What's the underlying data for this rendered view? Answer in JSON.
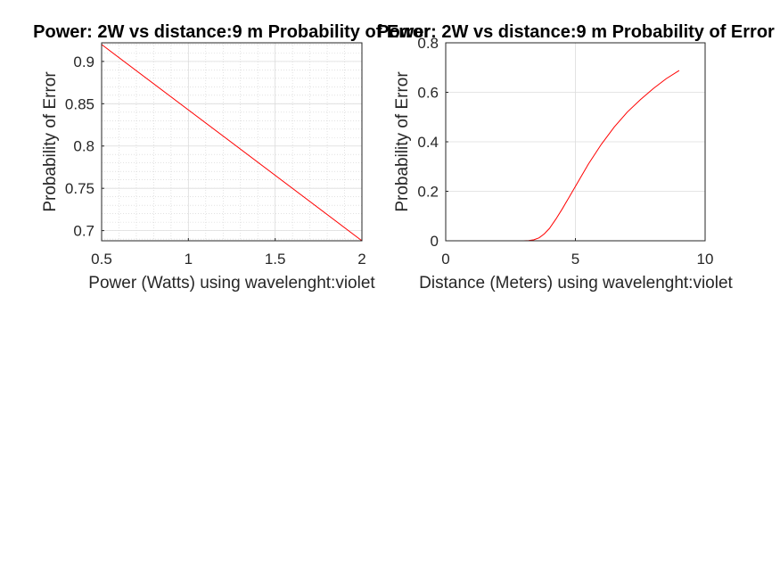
{
  "chart_data": [
    {
      "type": "line",
      "title": "Power: 2W   vs distance:9 m Probability of Error",
      "xlabel": "Power (Watts) using wavelenght:violet",
      "ylabel": "Probability of Error",
      "xlim": [
        0.5,
        2
      ],
      "ylim": [
        0.688,
        0.922
      ],
      "xticks": [
        0.5,
        1,
        1.5,
        2
      ],
      "yticks": [
        0.7,
        0.75,
        0.8,
        0.85,
        0.9
      ],
      "xtick_labels": [
        "0.5",
        "1",
        "1.5",
        "2"
      ],
      "ytick_labels": [
        "0.7",
        "0.75",
        "0.8",
        "0.85",
        "0.9"
      ],
      "grid": "major and minor",
      "line_color": "#ff0000",
      "series": [
        {
          "x": [
            0.5,
            2
          ],
          "y": [
            0.92,
            0.688
          ]
        }
      ]
    },
    {
      "type": "line",
      "title": "Power: 2W   vs distance:9 m Probability of Error",
      "xlabel": "Distance (Meters) using wavelenght:violet",
      "ylabel": "Probability of Error",
      "xlim": [
        0,
        10
      ],
      "ylim": [
        0,
        0.8
      ],
      "xticks": [
        0,
        5,
        10
      ],
      "yticks": [
        0,
        0.2,
        0.4,
        0.6,
        0.8
      ],
      "xtick_labels": [
        "0",
        "5",
        "10"
      ],
      "ytick_labels": [
        "0",
        "0.2",
        "0.4",
        "0.6",
        "0.8"
      ],
      "grid": "major",
      "line_color": "#ff0000",
      "series": [
        {
          "x": [
            0.5,
            1,
            2,
            3,
            3.2,
            3.4,
            3.6,
            3.8,
            4,
            4.25,
            4.5,
            4.75,
            5,
            5.5,
            6,
            6.5,
            7,
            7.5,
            8,
            8.5,
            9
          ],
          "y": [
            0,
            0,
            0,
            0,
            0.001,
            0.004,
            0.012,
            0.028,
            0.05,
            0.088,
            0.13,
            0.175,
            0.22,
            0.31,
            0.39,
            0.46,
            0.52,
            0.57,
            0.615,
            0.655,
            0.688
          ]
        }
      ]
    }
  ]
}
